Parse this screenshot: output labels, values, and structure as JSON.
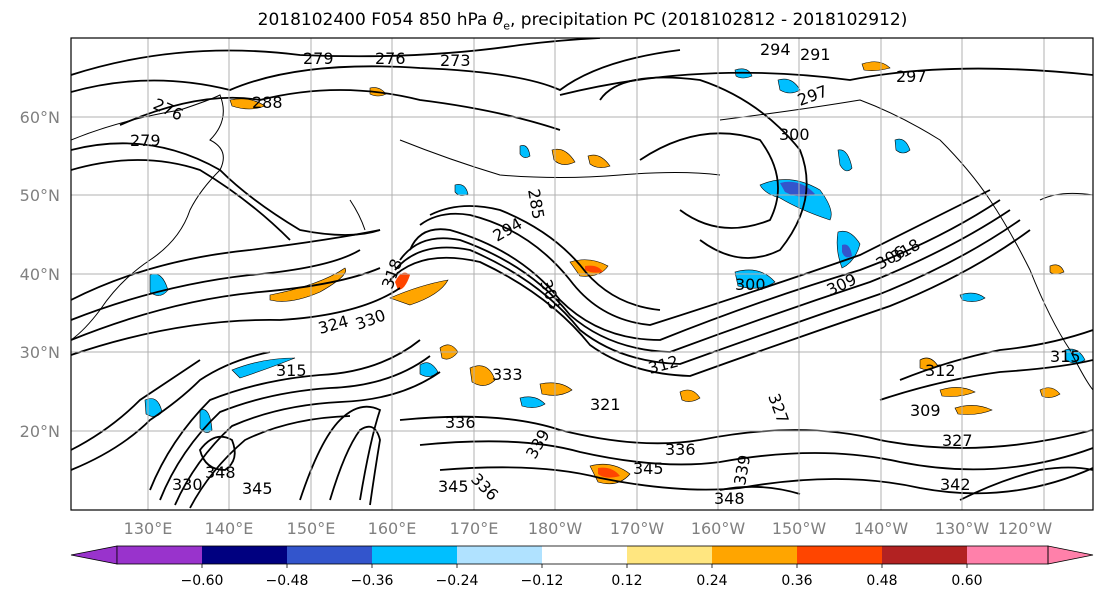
{
  "title_prefix": "2018102400 F054 850 hPa ",
  "title_theta": "θ",
  "title_theta_sub": "e",
  "title_suffix": ", precipitation PC (2018102812 - 2018102912)",
  "map": {
    "lat_labels": [
      "20°N",
      "30°N",
      "40°N",
      "50°N",
      "60°N"
    ],
    "lon_labels": [
      "130°E",
      "140°E",
      "150°E",
      "160°E",
      "170°E",
      "180°W",
      "170°W",
      "160°W",
      "150°W",
      "140°W",
      "130°W",
      "120°W"
    ],
    "contour_labels": [
      "279",
      "276",
      "273",
      "276",
      "279",
      "288",
      "285",
      "300",
      "297",
      "294",
      "303",
      "300",
      "309",
      "306",
      "312",
      "315",
      "318",
      "324",
      "330",
      "333",
      "336",
      "321",
      "339",
      "345",
      "336",
      "348",
      "345",
      "342",
      "336",
      "330",
      "327",
      "339",
      "312",
      "309",
      "327",
      "345",
      "348",
      "315",
      "318",
      "297",
      "294",
      "291"
    ],
    "contour_color": "#000000",
    "coast_color": "#000000",
    "grid_color": "#b0b0b0"
  },
  "colorbar": {
    "colors": [
      "#9933cc",
      "#000080",
      "#3355cc",
      "#00bfff",
      "#b0e2ff",
      "#ffffff",
      "#ffe680",
      "#ffa500",
      "#ff4500",
      "#b22222",
      "#ff80aa"
    ],
    "tick_labels": [
      "−0.60",
      "−0.48",
      "−0.36",
      "−0.24",
      "−0.12",
      "0.12",
      "0.24",
      "0.36",
      "0.48",
      "0.60"
    ]
  }
}
